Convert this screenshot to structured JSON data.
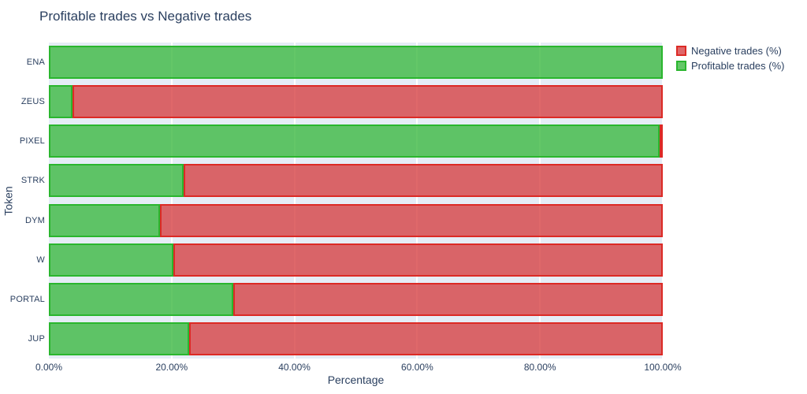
{
  "title": "Profitable trades vs Negative trades",
  "colors": {
    "text": "#2a3f5f",
    "plot_background": "#e5ecf6",
    "gridline": "#ffffff",
    "negative_fill": "rgba(214,62,64,0.78)",
    "negative_border": "#dc2a25",
    "profitable_fill": "rgba(57,183,61,0.78)",
    "profitable_border": "#2ab62e"
  },
  "legend": {
    "items": [
      {
        "label": "Negative trades (%)",
        "key": "negative"
      },
      {
        "label": "Profitable trades (%)",
        "key": "profitable"
      }
    ]
  },
  "chart_data": {
    "type": "bar",
    "orientation": "horizontal",
    "stacked": true,
    "title": "Profitable trades vs Negative trades",
    "xlabel": "Percentage",
    "ylabel": "Token",
    "xlim": [
      0,
      100
    ],
    "grid": true,
    "legend_position": "top-right",
    "x_ticks": [
      "0.00%",
      "20.00%",
      "40.00%",
      "60.00%",
      "80.00%",
      "100.00%"
    ],
    "x_tick_values": [
      0,
      20,
      40,
      60,
      80,
      100
    ],
    "categories": [
      "ENA",
      "ZEUS",
      "PIXEL",
      "STRK",
      "DYM",
      "W",
      "PORTAL",
      "JUP"
    ],
    "series": [
      {
        "name": "Negative trades (%)",
        "key": "negative",
        "values": [
          0,
          96.1,
          0.5,
          78.0,
          81.9,
          79.7,
          70.0,
          77.1
        ]
      },
      {
        "name": "Profitable trades (%)",
        "key": "profitable",
        "values": [
          100,
          3.9,
          99.5,
          22.0,
          18.1,
          20.3,
          30.0,
          22.9
        ]
      }
    ],
    "stack_order_keys": [
      "profitable",
      "negative"
    ]
  }
}
